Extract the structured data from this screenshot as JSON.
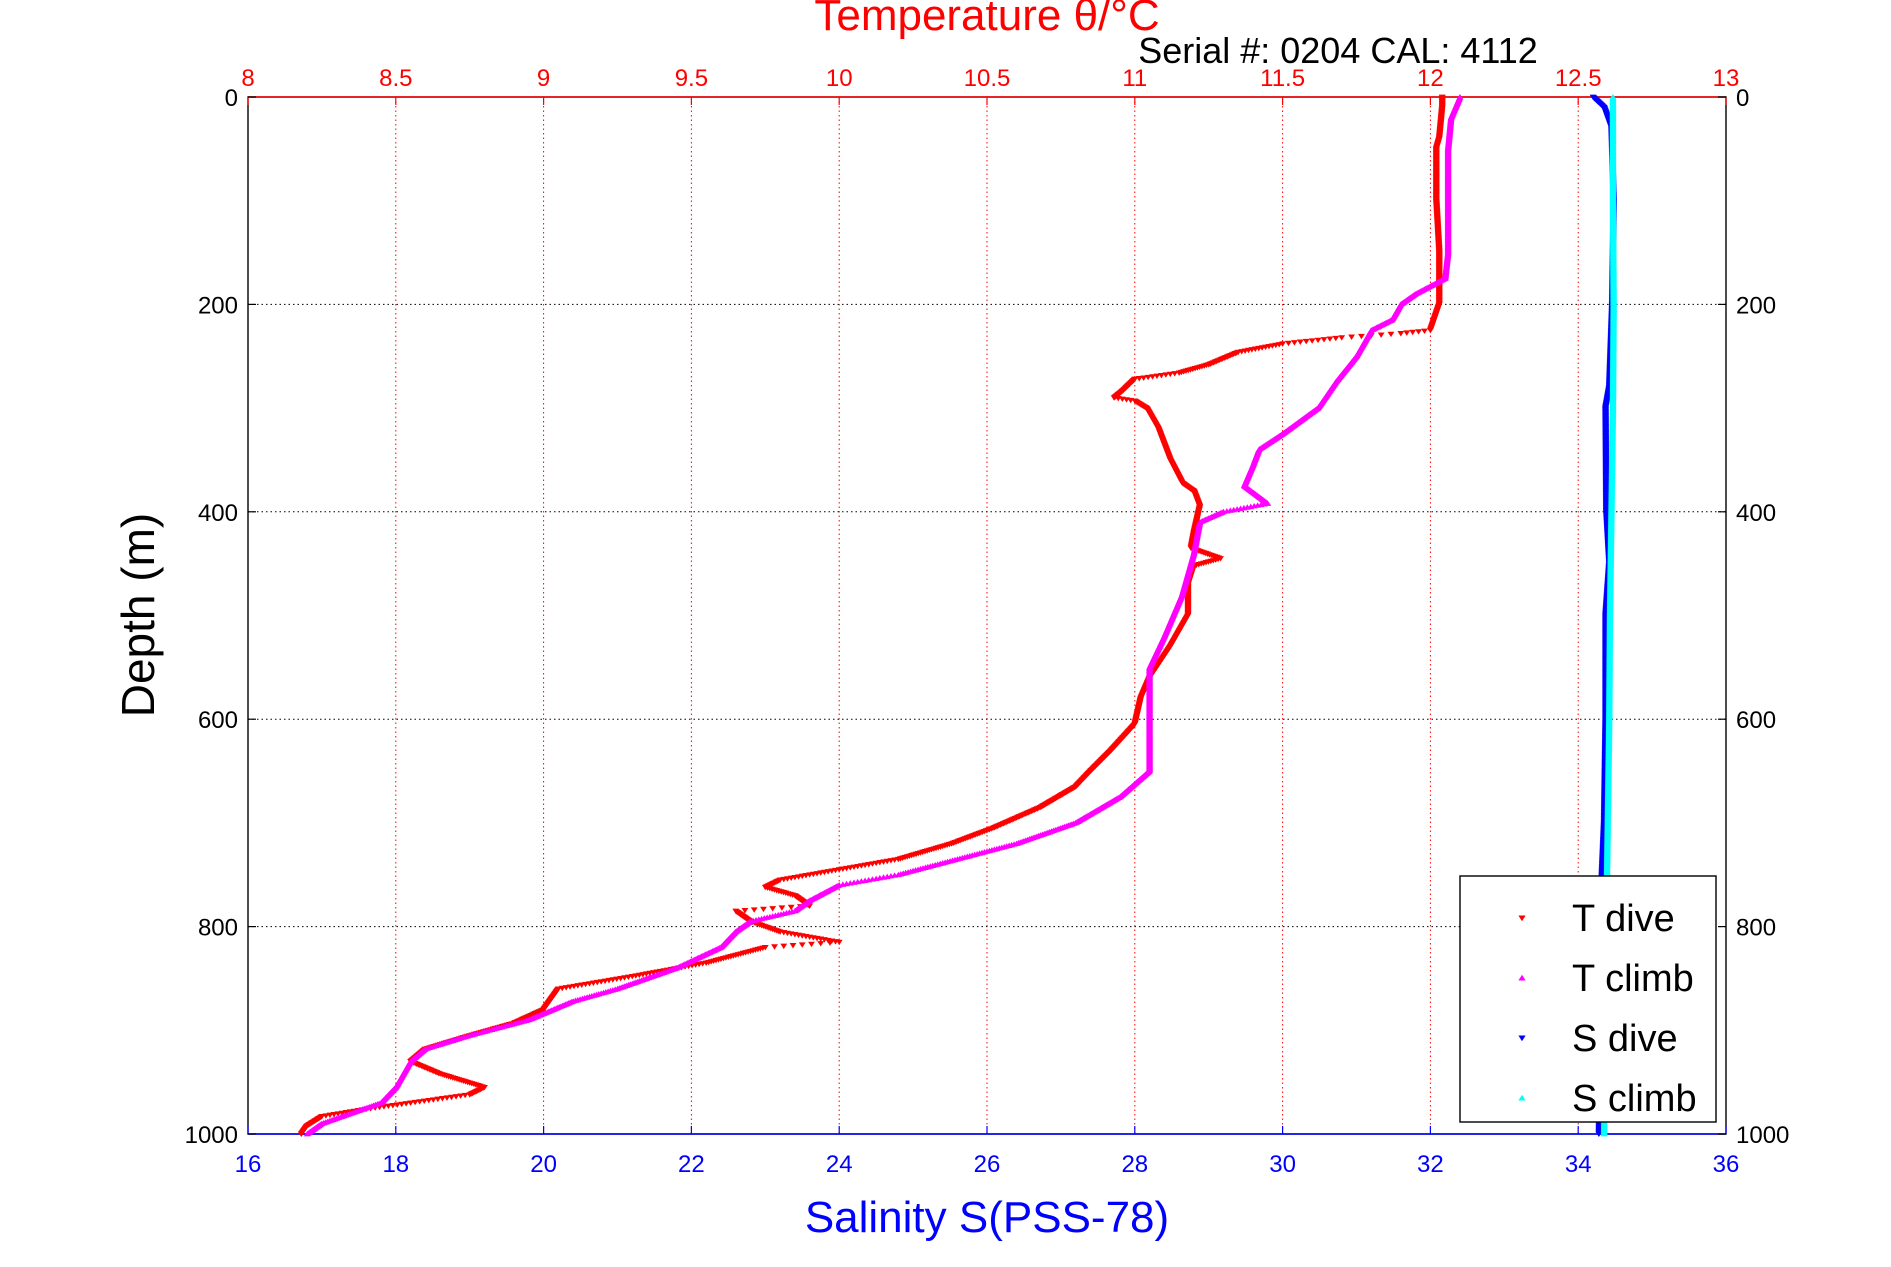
{
  "chart_data": {
    "type": "scatter",
    "title": "Temperature θ/°C",
    "subtitle": "Serial #: 0204  CAL: 4112",
    "ylabel": "Depth (m)",
    "xlabel": "Salinity S(PSS-78)",
    "ylim": [
      0,
      1000
    ],
    "y_reversed": true,
    "x_top": {
      "label": "Temperature θ/°C",
      "lim": [
        8,
        13
      ],
      "ticks": [
        "8",
        "8.5",
        "9",
        "9.5",
        "10",
        "10.5",
        "11",
        "11.5",
        "12",
        "12.5",
        "13"
      ],
      "color": "#ff0000"
    },
    "x_bottom": {
      "label": "Salinity S(PSS-78)",
      "lim": [
        16,
        36
      ],
      "ticks": [
        "16",
        "18",
        "20",
        "22",
        "24",
        "26",
        "28",
        "30",
        "32",
        "34",
        "36"
      ],
      "color": "#0000ff"
    },
    "y_ticks": [
      "0",
      "200",
      "400",
      "600",
      "800",
      "1000"
    ],
    "grid": true,
    "legend_position": "bottom-right",
    "series": [
      {
        "name": "T dive",
        "axis": "top",
        "color": "#ff0000",
        "marker": "triangle-down",
        "points": [
          [
            12.04,
            0
          ],
          [
            12.04,
            10
          ],
          [
            12.03,
            40
          ],
          [
            12.02,
            50
          ],
          [
            12.02,
            100
          ],
          [
            12.03,
            150
          ],
          [
            12.03,
            200
          ],
          [
            12.0,
            225
          ],
          [
            11.9,
            228
          ],
          [
            11.7,
            232
          ],
          [
            11.5,
            238
          ],
          [
            11.35,
            246
          ],
          [
            11.25,
            258
          ],
          [
            11.15,
            266
          ],
          [
            11.0,
            272
          ],
          [
            10.96,
            283
          ],
          [
            10.93,
            290
          ],
          [
            11.0,
            293
          ],
          [
            11.04,
            300
          ],
          [
            11.08,
            320
          ],
          [
            11.12,
            350
          ],
          [
            11.16,
            372
          ],
          [
            11.2,
            380
          ],
          [
            11.22,
            395
          ],
          [
            11.2,
            420
          ],
          [
            11.19,
            435
          ],
          [
            11.29,
            445
          ],
          [
            11.2,
            452
          ],
          [
            11.18,
            470
          ],
          [
            11.18,
            500
          ],
          [
            11.12,
            530
          ],
          [
            11.05,
            560
          ],
          [
            11.02,
            580
          ],
          [
            11.0,
            605
          ],
          [
            10.92,
            630
          ],
          [
            10.85,
            650
          ],
          [
            10.8,
            665
          ],
          [
            10.68,
            685
          ],
          [
            10.52,
            705
          ],
          [
            10.38,
            720
          ],
          [
            10.2,
            735
          ],
          [
            10.0,
            745
          ],
          [
            9.8,
            755
          ],
          [
            9.75,
            762
          ],
          [
            9.85,
            770
          ],
          [
            9.9,
            780
          ],
          [
            9.65,
            785
          ],
          [
            9.7,
            795
          ],
          [
            9.8,
            805
          ],
          [
            10.0,
            815
          ],
          [
            9.75,
            820
          ],
          [
            9.55,
            835
          ],
          [
            9.3,
            848
          ],
          [
            9.05,
            860
          ],
          [
            9.0,
            880
          ],
          [
            8.9,
            893
          ],
          [
            8.75,
            905
          ],
          [
            8.6,
            918
          ],
          [
            8.55,
            930
          ],
          [
            8.65,
            942
          ],
          [
            8.8,
            955
          ],
          [
            8.75,
            962
          ],
          [
            8.55,
            970
          ],
          [
            8.4,
            976
          ],
          [
            8.25,
            983
          ],
          [
            8.2,
            992
          ],
          [
            8.18,
            1000
          ]
        ]
      },
      {
        "name": "T climb",
        "axis": "top",
        "color": "#ff00ff",
        "marker": "triangle-up",
        "points": [
          [
            12.1,
            0
          ],
          [
            12.07,
            20
          ],
          [
            12.06,
            50
          ],
          [
            12.06,
            100
          ],
          [
            12.06,
            150
          ],
          [
            12.05,
            175
          ],
          [
            11.95,
            190
          ],
          [
            11.9,
            200
          ],
          [
            11.87,
            215
          ],
          [
            11.8,
            225
          ],
          [
            11.75,
            250
          ],
          [
            11.68,
            275
          ],
          [
            11.62,
            300
          ],
          [
            11.5,
            325
          ],
          [
            11.42,
            340
          ],
          [
            11.4,
            355
          ],
          [
            11.37,
            375
          ],
          [
            11.45,
            392
          ],
          [
            11.3,
            400
          ],
          [
            11.22,
            410
          ],
          [
            11.2,
            440
          ],
          [
            11.16,
            480
          ],
          [
            11.1,
            520
          ],
          [
            11.05,
            550
          ],
          [
            11.05,
            600
          ],
          [
            11.05,
            650
          ],
          [
            10.95,
            675
          ],
          [
            10.8,
            700
          ],
          [
            10.6,
            720
          ],
          [
            10.4,
            735
          ],
          [
            10.2,
            750
          ],
          [
            10.0,
            760
          ],
          [
            9.9,
            775
          ],
          [
            9.85,
            785
          ],
          [
            9.7,
            795
          ],
          [
            9.65,
            805
          ],
          [
            9.6,
            820
          ],
          [
            9.45,
            840
          ],
          [
            9.25,
            860
          ],
          [
            9.1,
            872
          ],
          [
            8.95,
            890
          ],
          [
            8.75,
            905
          ],
          [
            8.6,
            918
          ],
          [
            8.55,
            930
          ],
          [
            8.5,
            955
          ],
          [
            8.45,
            970
          ],
          [
            8.35,
            980
          ],
          [
            8.25,
            990
          ],
          [
            8.2,
            1000
          ]
        ]
      },
      {
        "name": "S dive",
        "axis": "bottom",
        "color": "#0000ff",
        "marker": "triangle-down",
        "points": [
          [
            34.2,
            0
          ],
          [
            34.35,
            10
          ],
          [
            34.45,
            30
          ],
          [
            34.48,
            100
          ],
          [
            34.46,
            200
          ],
          [
            34.42,
            280
          ],
          [
            34.37,
            300
          ],
          [
            34.38,
            400
          ],
          [
            34.42,
            450
          ],
          [
            34.37,
            500
          ],
          [
            34.37,
            600
          ],
          [
            34.35,
            700
          ],
          [
            34.32,
            750
          ],
          [
            34.3,
            800
          ],
          [
            34.3,
            900
          ],
          [
            34.28,
            1000
          ]
        ]
      },
      {
        "name": "S climb",
        "axis": "bottom",
        "color": "#00ffff",
        "marker": "triangle-up",
        "points": [
          [
            34.47,
            0
          ],
          [
            34.47,
            100
          ],
          [
            34.48,
            200
          ],
          [
            34.47,
            300
          ],
          [
            34.45,
            400
          ],
          [
            34.43,
            500
          ],
          [
            34.42,
            600
          ],
          [
            34.4,
            700
          ],
          [
            34.38,
            800
          ],
          [
            34.37,
            900
          ],
          [
            34.35,
            1000
          ]
        ]
      }
    ]
  }
}
